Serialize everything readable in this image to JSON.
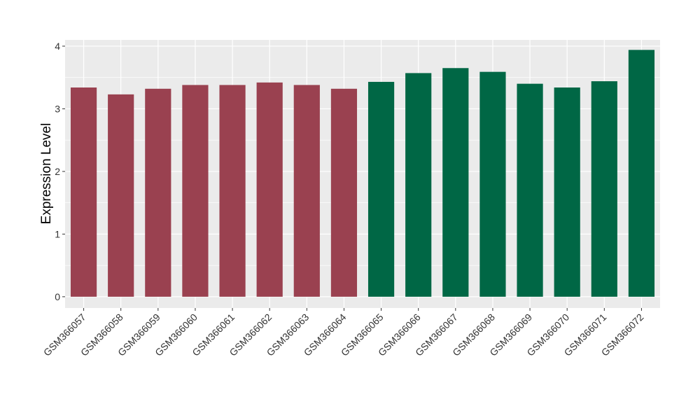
{
  "chart_data": {
    "type": "bar",
    "ylabel": "Expression Level",
    "xlabel": "",
    "ylim": [
      -0.18,
      4.1
    ],
    "yticks": [
      0,
      1,
      2,
      3,
      4
    ],
    "grid": true,
    "categories": [
      "GSM366057",
      "GSM366058",
      "GSM366059",
      "GSM366060",
      "GSM366061",
      "GSM366062",
      "GSM366063",
      "GSM366064",
      "GSM366065",
      "GSM366066",
      "GSM366067",
      "GSM366068",
      "GSM366069",
      "GSM366070",
      "GSM366071",
      "GSM366072"
    ],
    "values": [
      3.34,
      3.23,
      3.32,
      3.38,
      3.38,
      3.42,
      3.38,
      3.32,
      3.43,
      3.57,
      3.65,
      3.59,
      3.4,
      3.34,
      3.44,
      3.94
    ],
    "bar_colors": [
      "#9a4150",
      "#9a4150",
      "#9a4150",
      "#9a4150",
      "#9a4150",
      "#9a4150",
      "#9a4150",
      "#9a4150",
      "#006745",
      "#006745",
      "#006745",
      "#006745",
      "#006745",
      "#006745",
      "#006745",
      "#006745"
    ],
    "panel_background": "#ebebeb",
    "grid_color": "#ffffff"
  }
}
